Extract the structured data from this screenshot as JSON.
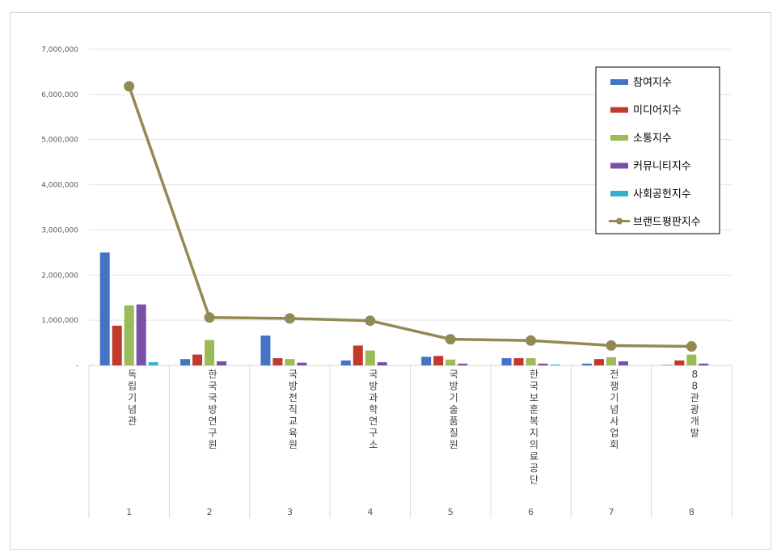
{
  "chart_data": {
    "type": "bar",
    "title": "",
    "xlabel": "",
    "ylabel": "",
    "ylim": [
      0,
      7000000
    ],
    "yticks": [
      0,
      1000000,
      2000000,
      3000000,
      4000000,
      5000000,
      6000000,
      7000000
    ],
    "ytick_labels": [
      "-",
      "1,000,000",
      "2,000,000",
      "3,000,000",
      "4,000,000",
      "5,000,000",
      "6,000,000",
      "7,000,000"
    ],
    "grid": true,
    "legend_position": "top-right",
    "categories": [
      {
        "num": "1",
        "name": "독립기념관"
      },
      {
        "num": "2",
        "name": "한국국방연구원"
      },
      {
        "num": "3",
        "name": "국방전직교육원"
      },
      {
        "num": "4",
        "name": "국방과학연구소"
      },
      {
        "num": "5",
        "name": "국방기술품질원"
      },
      {
        "num": "6",
        "name": "한국보훈복지의료공단"
      },
      {
        "num": "7",
        "name": "전쟁기념사업회"
      },
      {
        "num": "8",
        "name": "88관광개발"
      }
    ],
    "series": [
      {
        "name": "참여지수",
        "kind": "bar",
        "color": "#4472c4",
        "values": [
          2500000,
          140000,
          660000,
          110000,
          190000,
          160000,
          40000,
          10000
        ]
      },
      {
        "name": "미디어지수",
        "kind": "bar",
        "color": "#c0392b",
        "values": [
          880000,
          240000,
          160000,
          440000,
          210000,
          160000,
          140000,
          110000
        ]
      },
      {
        "name": "소통지수",
        "kind": "bar",
        "color": "#9bbb59",
        "values": [
          1330000,
          560000,
          140000,
          330000,
          130000,
          160000,
          180000,
          240000
        ]
      },
      {
        "name": "커뮤니티지수",
        "kind": "bar",
        "color": "#7b4fa6",
        "values": [
          1350000,
          90000,
          60000,
          70000,
          40000,
          40000,
          90000,
          40000
        ]
      },
      {
        "name": "사회공헌지수",
        "kind": "bar",
        "color": "#2fb3c9",
        "values": [
          70000,
          0,
          0,
          0,
          0,
          20000,
          0,
          0
        ]
      },
      {
        "name": "브랜드평판지수",
        "kind": "line",
        "color": "#938953",
        "values": [
          6180000,
          1060000,
          1040000,
          990000,
          580000,
          550000,
          440000,
          420000
        ]
      }
    ]
  }
}
